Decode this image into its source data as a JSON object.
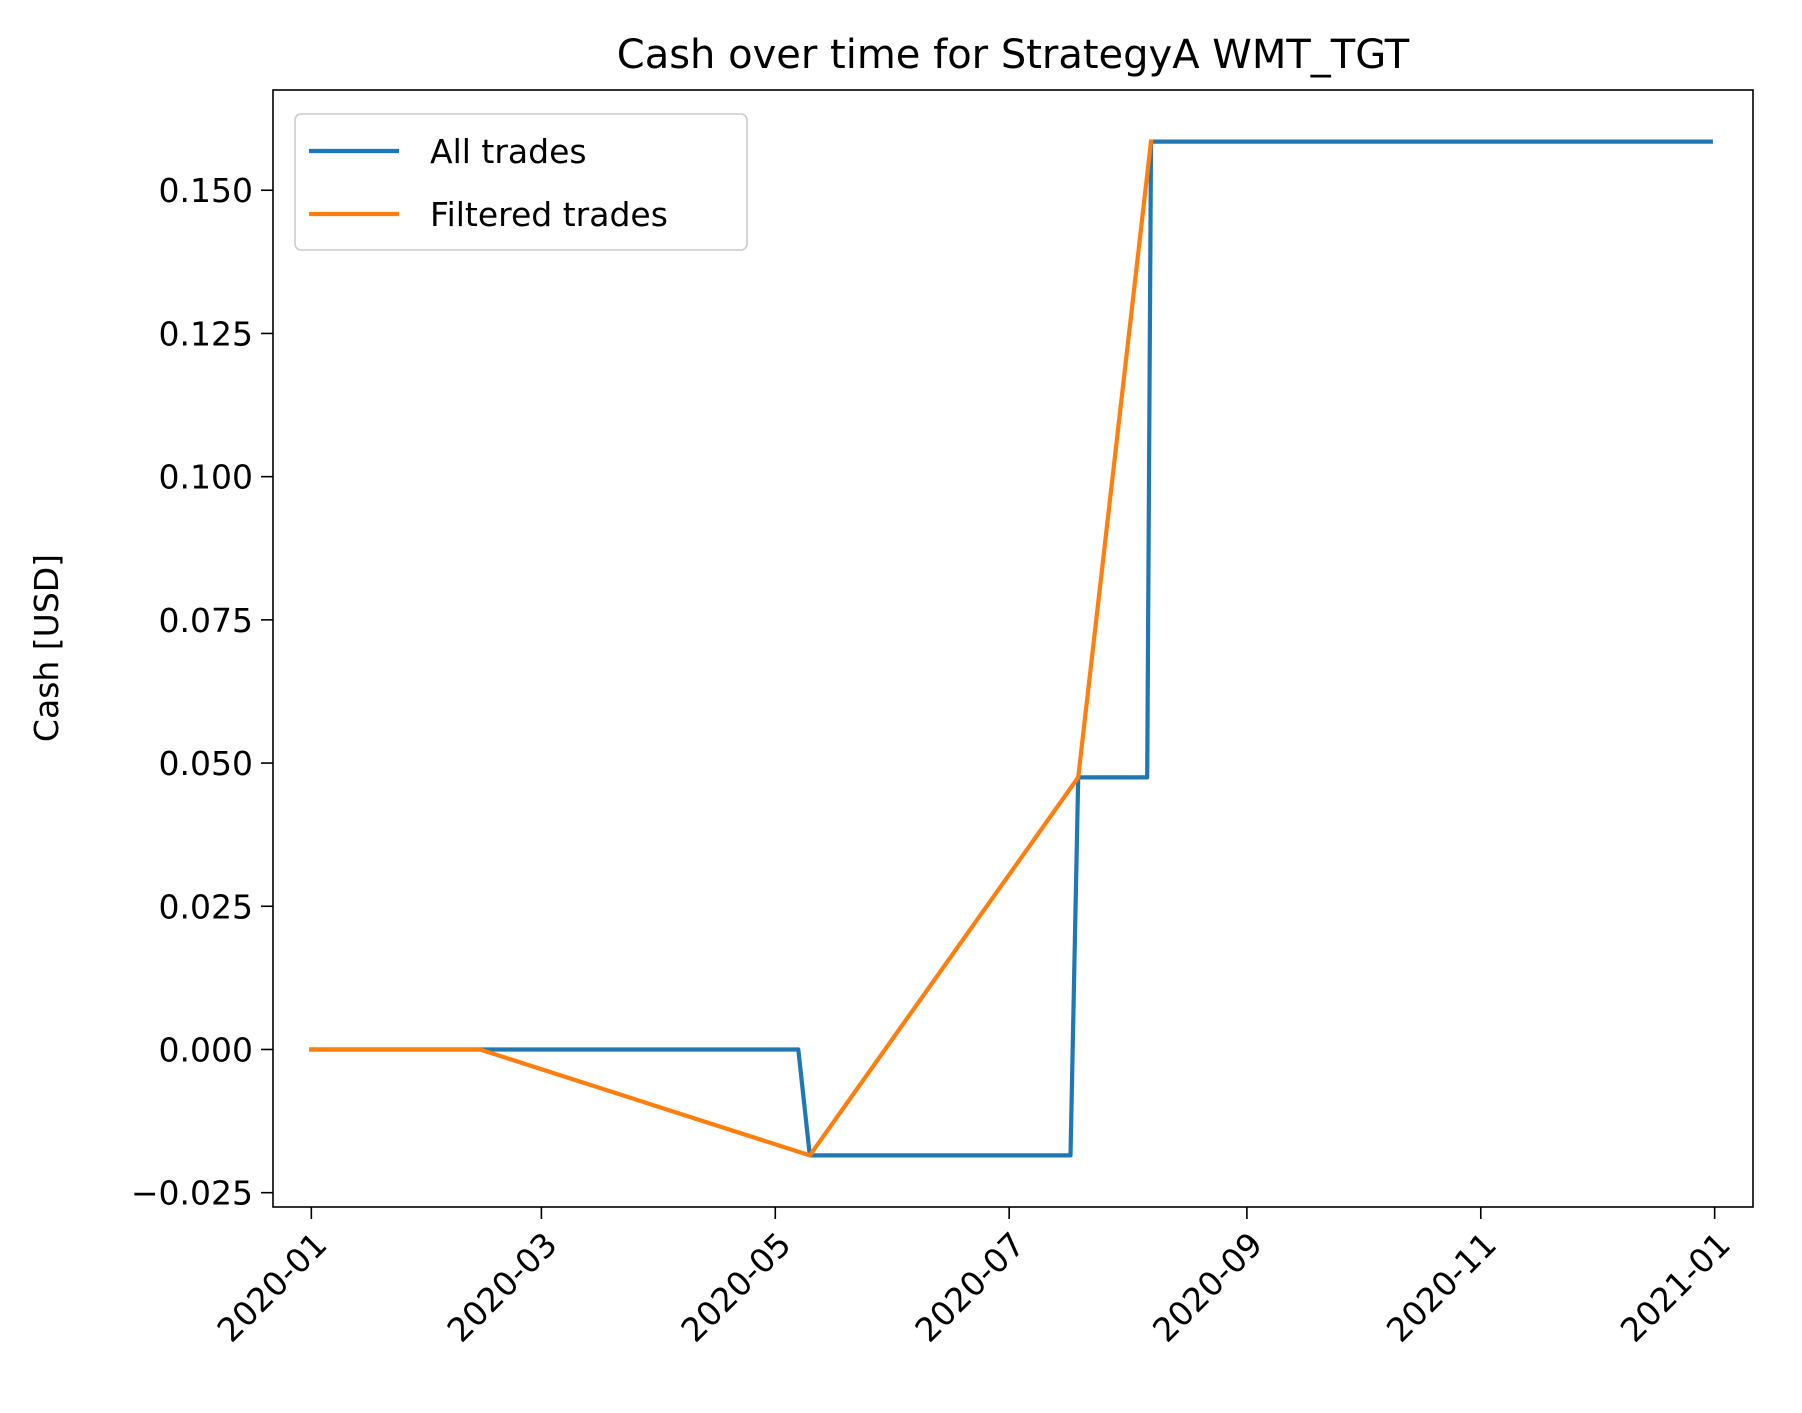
{
  "chart_data": {
    "type": "line",
    "title": "Cash over time for StrategyA WMT_TGT",
    "xlabel": "",
    "ylabel": "Cash [USD]",
    "xlim": [
      "2019-12-22",
      "2021-01-11"
    ],
    "ylim": [
      -0.0275,
      0.1675
    ],
    "x_ticks": [
      "2020-01",
      "2020-03",
      "2020-05",
      "2020-07",
      "2020-09",
      "2020-11",
      "2021-01"
    ],
    "y_ticks": [
      {
        "value": -0.025,
        "label": "−0.025"
      },
      {
        "value": 0.0,
        "label": "0.000"
      },
      {
        "value": 0.025,
        "label": "0.025"
      },
      {
        "value": 0.05,
        "label": "0.050"
      },
      {
        "value": 0.075,
        "label": "0.075"
      },
      {
        "value": 0.1,
        "label": "0.100"
      },
      {
        "value": 0.125,
        "label": "0.125"
      },
      {
        "value": 0.15,
        "label": "0.150"
      }
    ],
    "grid": false,
    "legend": "upper-left",
    "series": [
      {
        "name": "All trades",
        "color": "#1f77b4",
        "points": [
          {
            "x": "2020-01-01",
            "y": 0.0
          },
          {
            "x": "2020-02-14",
            "y": 0.0
          },
          {
            "x": "2020-05-07",
            "y": 0.0
          },
          {
            "x": "2020-05-10",
            "y": -0.0185
          },
          {
            "x": "2020-07-17",
            "y": -0.0185
          },
          {
            "x": "2020-07-19",
            "y": 0.0475
          },
          {
            "x": "2020-08-06",
            "y": 0.0475
          },
          {
            "x": "2020-08-07",
            "y": 0.1585
          },
          {
            "x": "2020-12-31",
            "y": 0.1585
          }
        ]
      },
      {
        "name": "Filtered trades",
        "color": "#ff7f0e",
        "points": [
          {
            "x": "2020-01-01",
            "y": 0.0
          },
          {
            "x": "2020-02-14",
            "y": 0.0
          },
          {
            "x": "2020-05-10",
            "y": -0.0185
          },
          {
            "x": "2020-07-19",
            "y": 0.0475
          },
          {
            "x": "2020-08-07",
            "y": 0.1585
          }
        ]
      }
    ]
  }
}
